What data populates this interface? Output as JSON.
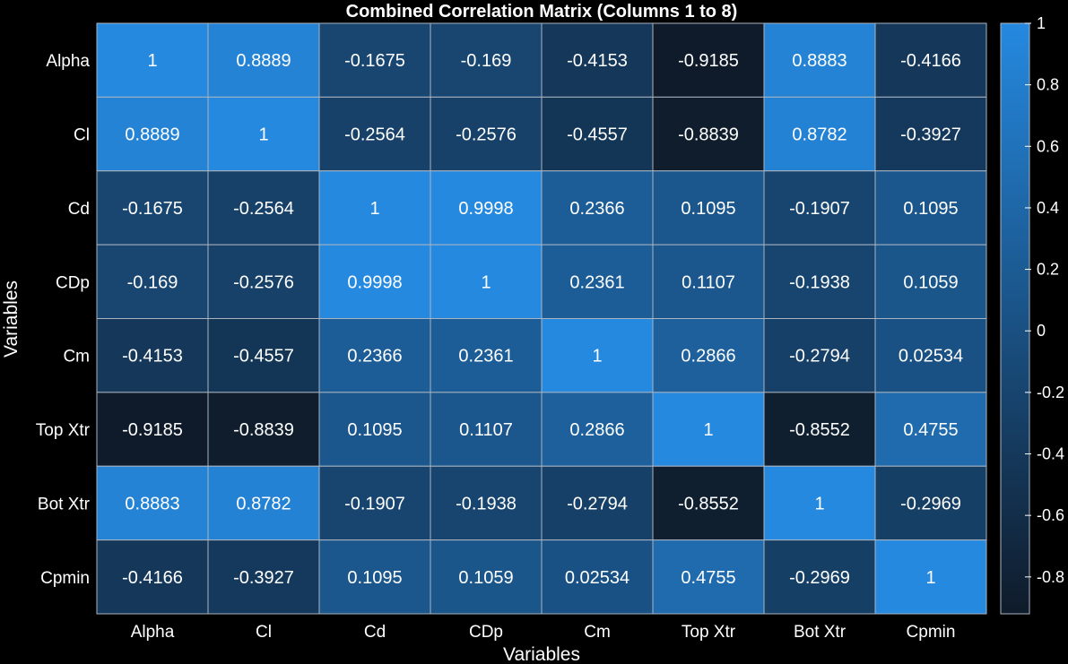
{
  "chart_data": {
    "type": "heatmap",
    "title": "Combined Correlation Matrix (Columns 1 to 8)",
    "xlabel": "Variables",
    "ylabel": "Variables",
    "rows": [
      "Alpha",
      "Cl",
      "Cd",
      "CDp",
      "Cm",
      "Top Xtr",
      "Bot Xtr",
      "Cpmin"
    ],
    "columns": [
      "Alpha",
      "Cl",
      "Cd",
      "CDp",
      "Cm",
      "Top Xtr",
      "Bot Xtr",
      "Cpmin"
    ],
    "values": [
      [
        1,
        0.8889,
        -0.1675,
        -0.169,
        -0.4153,
        -0.9185,
        0.8883,
        -0.4166
      ],
      [
        0.8889,
        1,
        -0.2564,
        -0.2576,
        -0.4557,
        -0.8839,
        0.8782,
        -0.3927
      ],
      [
        -0.1675,
        -0.2564,
        1,
        0.9998,
        0.2366,
        0.1095,
        -0.1907,
        0.1095
      ],
      [
        -0.169,
        -0.2576,
        0.9998,
        1,
        0.2361,
        0.1107,
        -0.1938,
        0.1059
      ],
      [
        -0.4153,
        -0.4557,
        0.2366,
        0.2361,
        1,
        0.2866,
        -0.2794,
        0.02534
      ],
      [
        -0.9185,
        -0.8839,
        0.1095,
        0.1107,
        0.2866,
        1,
        -0.8552,
        0.4755
      ],
      [
        0.8883,
        0.8782,
        -0.1907,
        -0.1938,
        -0.2794,
        -0.8552,
        1,
        -0.2969
      ],
      [
        -0.4166,
        -0.3927,
        0.1095,
        0.1059,
        0.02534,
        0.4755,
        -0.2969,
        1
      ]
    ],
    "value_labels": [
      [
        "1",
        "0.8889",
        "-0.1675",
        "-0.169",
        "-0.4153",
        "-0.9185",
        "0.8883",
        "-0.4166"
      ],
      [
        "0.8889",
        "1",
        "-0.2564",
        "-0.2576",
        "-0.4557",
        "-0.8839",
        "0.8782",
        "-0.3927"
      ],
      [
        "-0.1675",
        "-0.2564",
        "1",
        "0.9998",
        "0.2366",
        "0.1095",
        "-0.1907",
        "0.1095"
      ],
      [
        "-0.169",
        "-0.2576",
        "0.9998",
        "1",
        "0.2361",
        "0.1107",
        "-0.1938",
        "0.1059"
      ],
      [
        "-0.4153",
        "-0.4557",
        "0.2366",
        "0.2361",
        "1",
        "0.2866",
        "-0.2794",
        "0.02534"
      ],
      [
        "-0.9185",
        "-0.8839",
        "0.1095",
        "0.1107",
        "0.2866",
        "1",
        "-0.8552",
        "0.4755"
      ],
      [
        "0.8883",
        "0.8782",
        "-0.1907",
        "-0.1938",
        "-0.2794",
        "-0.8552",
        "1",
        "-0.2969"
      ],
      [
        "-0.4166",
        "-0.3927",
        "0.1095",
        "0.1059",
        "0.02534",
        "0.4755",
        "-0.2969",
        "1"
      ]
    ],
    "colorbar": {
      "min": -0.92,
      "max": 1,
      "ticks": [
        1,
        0.8,
        0.6,
        0.4,
        0.2,
        0,
        -0.2,
        -0.4,
        -0.6,
        -0.8
      ],
      "tick_labels": [
        "1",
        "0.8",
        "0.6",
        "0.4",
        "0.2",
        "0",
        "-0.2",
        "-0.4",
        "-0.6",
        "-0.8"
      ],
      "color_low": "#0f1b2a",
      "color_high": "#2589e0"
    },
    "grid_line_color": "#aab4c0",
    "background": "#000000"
  }
}
